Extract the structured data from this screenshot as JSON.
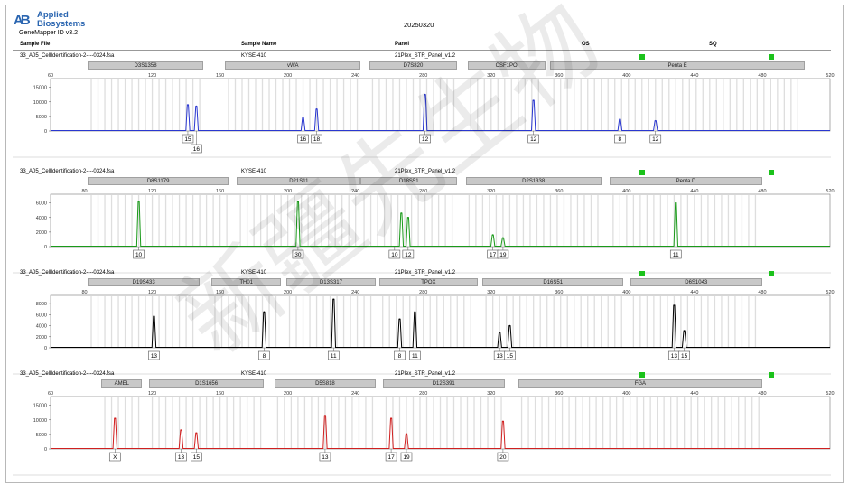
{
  "header": {
    "brand_mark": "AB",
    "brand_line1": "Applied",
    "brand_line2": "Biosystems",
    "software": "GeneMapper ID v3.2",
    "run_date": "20250320",
    "columns": [
      "Sample File",
      "Sample Name",
      "Panel",
      "OS",
      "SQ"
    ]
  },
  "watermark": "新疆先生物",
  "chart_data": [
    {
      "type": "line",
      "sample_file": "33_A05_CellIdentification-2----0324.fsa",
      "sample_name": "KYSE-410",
      "panel": "21Plex_STR_Panel_v1.2",
      "color": "#2a37d0",
      "x_ticks": [
        60,
        120,
        160,
        200,
        240,
        280,
        320,
        360,
        400,
        440,
        480,
        520
      ],
      "xlim": [
        60,
        520
      ],
      "y_ticks": [
        0,
        5000,
        10000,
        15000
      ],
      "ylim": [
        0,
        18000
      ],
      "loci": [
        {
          "name": "D3S1358",
          "from": 82,
          "to": 150
        },
        {
          "name": "vWA",
          "from": 163,
          "to": 243
        },
        {
          "name": "D7S820",
          "from": 248,
          "to": 300
        },
        {
          "name": "CSF1PO",
          "from": 306,
          "to": 352
        },
        {
          "name": "Penta E",
          "from": 355,
          "to": 505
        }
      ],
      "peaks": [
        {
          "x": 141,
          "y": 9000
        },
        {
          "x": 146,
          "y": 8500
        },
        {
          "x": 209,
          "y": 4500
        },
        {
          "x": 217,
          "y": 7500
        },
        {
          "x": 281,
          "y": 12500
        },
        {
          "x": 345,
          "y": 10500
        },
        {
          "x": 396,
          "y": 4000
        },
        {
          "x": 417,
          "y": 3500
        }
      ],
      "alleles": [
        {
          "x": 141,
          "label": "15",
          "row": 0
        },
        {
          "x": 146,
          "label": "16",
          "row": 1
        },
        {
          "x": 209,
          "label": "16",
          "row": 0
        },
        {
          "x": 217,
          "label": "18",
          "row": 0
        },
        {
          "x": 281,
          "label": "12",
          "row": 0
        },
        {
          "x": 345,
          "label": "12",
          "row": 0
        },
        {
          "x": 396,
          "label": "8",
          "row": 0
        },
        {
          "x": 417,
          "label": "12",
          "row": 0
        }
      ]
    },
    {
      "type": "line",
      "sample_file": "33_A05_CellIdentification-2----0324.fsa",
      "sample_name": "KYSE-410",
      "panel": "21Plex_STR_Panel_v1.2",
      "color": "#1a9a1a",
      "x_ticks": [
        80,
        120,
        160,
        200,
        240,
        280,
        320,
        360,
        400,
        440,
        480,
        520
      ],
      "xlim": [
        60,
        520
      ],
      "y_ticks": [
        0,
        2000,
        4000,
        6000
      ],
      "ylim": [
        0,
        7200
      ],
      "loci": [
        {
          "name": "D8S1179",
          "from": 82,
          "to": 165
        },
        {
          "name": "D21S11",
          "from": 170,
          "to": 243
        },
        {
          "name": "D18S51",
          "from": 243,
          "to": 300
        },
        {
          "name": "D2S1338",
          "from": 305,
          "to": 385
        },
        {
          "name": "Penta D",
          "from": 390,
          "to": 480
        }
      ],
      "peaks": [
        {
          "x": 112,
          "y": 6200
        },
        {
          "x": 206,
          "y": 6200
        },
        {
          "x": 267,
          "y": 4600
        },
        {
          "x": 271,
          "y": 4000
        },
        {
          "x": 321,
          "y": 1600
        },
        {
          "x": 327,
          "y": 1200
        },
        {
          "x": 429,
          "y": 6000
        }
      ],
      "alleles": [
        {
          "x": 112,
          "label": "10",
          "row": 0
        },
        {
          "x": 206,
          "label": "30",
          "row": 0
        },
        {
          "x": 263,
          "label": "10",
          "row": 0
        },
        {
          "x": 271,
          "label": "12",
          "row": 0
        },
        {
          "x": 321,
          "label": "17",
          "row": 0
        },
        {
          "x": 327,
          "label": "19",
          "row": 0
        },
        {
          "x": 429,
          "label": "11",
          "row": 0
        }
      ]
    },
    {
      "type": "line",
      "sample_file": "33_A05_CellIdentification-2----0324.fsa",
      "sample_name": "KYSE-410",
      "panel": "21Plex_STR_Panel_v1.2",
      "color": "#000000",
      "x_ticks": [
        80,
        120,
        160,
        200,
        240,
        280,
        320,
        360,
        400,
        440,
        480,
        520
      ],
      "xlim": [
        60,
        520
      ],
      "y_ticks": [
        0,
        2000,
        4000,
        6000,
        8000
      ],
      "ylim": [
        0,
        9500
      ],
      "loci": [
        {
          "name": "D19S433",
          "from": 82,
          "to": 148
        },
        {
          "name": "TH01",
          "from": 155,
          "to": 196
        },
        {
          "name": "D13S317",
          "from": 199,
          "to": 252
        },
        {
          "name": "TPOX",
          "from": 254,
          "to": 312
        },
        {
          "name": "D16S51",
          "from": 315,
          "to": 398
        },
        {
          "name": "D6S1043",
          "from": 402,
          "to": 480
        }
      ],
      "peaks": [
        {
          "x": 121,
          "y": 5700
        },
        {
          "x": 186,
          "y": 6500
        },
        {
          "x": 227,
          "y": 8800
        },
        {
          "x": 266,
          "y": 5200
        },
        {
          "x": 275,
          "y": 6500
        },
        {
          "x": 325,
          "y": 2800
        },
        {
          "x": 331,
          "y": 4000
        },
        {
          "x": 428,
          "y": 7700
        },
        {
          "x": 434,
          "y": 3100
        }
      ],
      "alleles": [
        {
          "x": 121,
          "label": "13",
          "row": 0
        },
        {
          "x": 186,
          "label": "8",
          "row": 0
        },
        {
          "x": 227,
          "label": "11",
          "row": 0
        },
        {
          "x": 266,
          "label": "8",
          "row": 0
        },
        {
          "x": 275,
          "label": "11",
          "row": 0
        },
        {
          "x": 325,
          "label": "13",
          "row": 0
        },
        {
          "x": 331,
          "label": "15",
          "row": 0
        },
        {
          "x": 428,
          "label": "13",
          "row": 0
        },
        {
          "x": 434,
          "label": "15",
          "row": 0
        }
      ]
    },
    {
      "type": "line",
      "sample_file": "33_A05_CellIdentification-2----0324.fsa",
      "sample_name": "KYSE-410",
      "panel": "21Plex_STR_Panel_v1.2",
      "color": "#d02020",
      "x_ticks": [
        60,
        120,
        160,
        200,
        240,
        280,
        320,
        360,
        400,
        440,
        480,
        520
      ],
      "xlim": [
        60,
        520
      ],
      "y_ticks": [
        0,
        5000,
        10000,
        15000
      ],
      "ylim": [
        0,
        18000
      ],
      "loci": [
        {
          "name": "AMEL",
          "from": 90,
          "to": 114
        },
        {
          "name": "D1S1656",
          "from": 118,
          "to": 186
        },
        {
          "name": "D5S818",
          "from": 192,
          "to": 252
        },
        {
          "name": "D12S391",
          "from": 256,
          "to": 328
        },
        {
          "name": "FGA",
          "from": 336,
          "to": 480
        }
      ],
      "peaks": [
        {
          "x": 98,
          "y": 10500
        },
        {
          "x": 137,
          "y": 6500
        },
        {
          "x": 146,
          "y": 5500
        },
        {
          "x": 222,
          "y": 11500
        },
        {
          "x": 261,
          "y": 10500
        },
        {
          "x": 270,
          "y": 5200
        },
        {
          "x": 327,
          "y": 9500
        }
      ],
      "alleles": [
        {
          "x": 98,
          "label": "X",
          "row": 0
        },
        {
          "x": 137,
          "label": "13",
          "row": 0
        },
        {
          "x": 146,
          "label": "15",
          "row": 0
        },
        {
          "x": 222,
          "label": "13",
          "row": 0
        },
        {
          "x": 261,
          "label": "17",
          "row": 0
        },
        {
          "x": 270,
          "label": "19",
          "row": 0
        },
        {
          "x": 327,
          "label": "20",
          "row": 0
        }
      ]
    }
  ]
}
